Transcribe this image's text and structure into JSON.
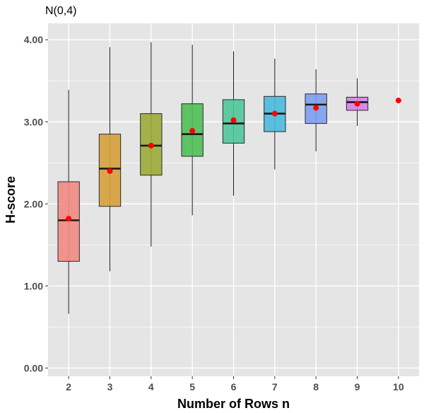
{
  "chart_data": {
    "type": "boxplot",
    "title": "N(0,4)",
    "xlabel": "Number of Rows n",
    "ylabel": "H-score",
    "ylim": [
      -0.1,
      4.2
    ],
    "yticks": [
      0.0,
      1.0,
      2.0,
      3.0,
      4.0
    ],
    "ytick_labels": [
      "0.00",
      "1.00",
      "2.00",
      "3.00",
      "4.00"
    ],
    "categories": [
      "2",
      "3",
      "4",
      "5",
      "6",
      "7",
      "8",
      "9",
      "10"
    ],
    "grid": true,
    "legend": "none",
    "boxes": [
      {
        "category": "2",
        "whisker_low": 0.66,
        "q1": 1.3,
        "median": 1.8,
        "q3": 2.27,
        "whisker_high": 3.39,
        "mean": 1.82,
        "color": "#f08a82"
      },
      {
        "category": "3",
        "whisker_low": 1.18,
        "q1": 1.97,
        "median": 2.43,
        "q3": 2.85,
        "whisker_high": 3.91,
        "mean": 2.4,
        "color": "#d6a03a"
      },
      {
        "category": "4",
        "whisker_low": 1.48,
        "q1": 2.35,
        "median": 2.71,
        "q3": 3.1,
        "whisker_high": 3.97,
        "mean": 2.71,
        "color": "#9aab38"
      },
      {
        "category": "5",
        "whisker_low": 1.86,
        "q1": 2.58,
        "median": 2.85,
        "q3": 3.22,
        "whisker_high": 3.94,
        "mean": 2.89,
        "color": "#4fbf57"
      },
      {
        "category": "6",
        "whisker_low": 2.1,
        "q1": 2.74,
        "median": 2.98,
        "q3": 3.27,
        "whisker_high": 3.86,
        "mean": 3.02,
        "color": "#4fc79a"
      },
      {
        "category": "7",
        "whisker_low": 2.42,
        "q1": 2.88,
        "median": 3.1,
        "q3": 3.31,
        "whisker_high": 3.77,
        "mean": 3.1,
        "color": "#4ab9de"
      },
      {
        "category": "8",
        "whisker_low": 2.64,
        "q1": 2.98,
        "median": 3.21,
        "q3": 3.34,
        "whisker_high": 3.64,
        "mean": 3.17,
        "color": "#7b9ef0"
      },
      {
        "category": "9",
        "whisker_low": 2.95,
        "q1": 3.14,
        "median": 3.24,
        "q3": 3.3,
        "whisker_high": 3.53,
        "mean": 3.22,
        "color": "#d67ee6"
      },
      {
        "category": "10",
        "whisker_low": 3.26,
        "q1": 3.26,
        "median": 3.26,
        "q3": 3.26,
        "whisker_high": 3.26,
        "mean": 3.26,
        "color": "#f07ab4"
      }
    ],
    "mean_marker_color": "#ff0000",
    "panel_background": "#e5e5e5",
    "grid_color": "#ffffff"
  }
}
